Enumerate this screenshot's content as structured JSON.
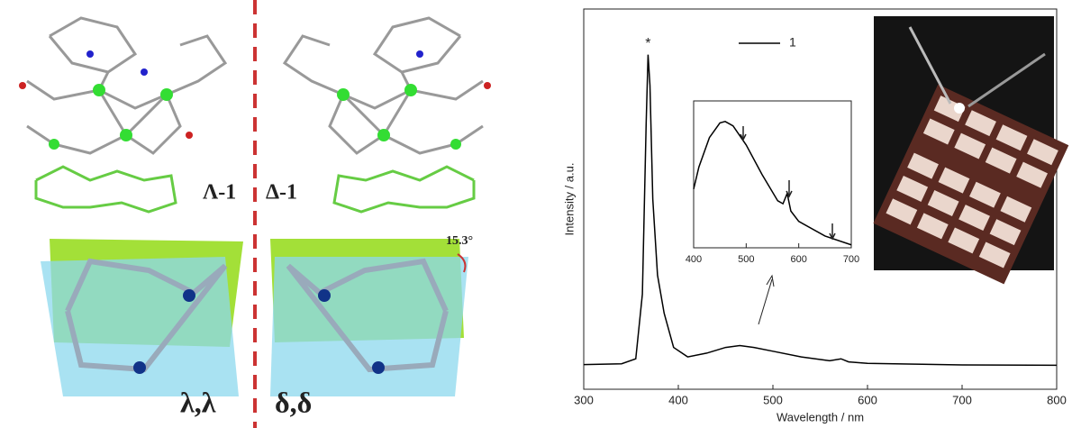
{
  "figure": {
    "labels": [
      "Λ-1",
      "Δ-1",
      "λ,λ",
      "δ,δ"
    ],
    "angle": "15.3°"
  },
  "chart_data": [
    {
      "type": "line",
      "x_label": "Wavelength / nm",
      "y_label": "Intensity / a.u.",
      "annotation": "*",
      "x": [
        300,
        340,
        355,
        362,
        366,
        368,
        370,
        373,
        378,
        385,
        395,
        410,
        430,
        450,
        465,
        480,
        500,
        530,
        560,
        572,
        580,
        600,
        650,
        700,
        800
      ],
      "series": [
        {
          "name": "1",
          "color": "#000000",
          "values": [
            0.065,
            0.067,
            0.08,
            0.25,
            0.7,
            0.88,
            0.8,
            0.5,
            0.3,
            0.2,
            0.11,
            0.085,
            0.095,
            0.11,
            0.115,
            0.11,
            0.1,
            0.085,
            0.075,
            0.08,
            0.072,
            0.068,
            0.066,
            0.064,
            0.063
          ]
        }
      ],
      "xlim": [
        300,
        800
      ],
      "xticks": [
        300,
        400,
        500,
        600,
        700,
        800
      ],
      "ylim": [
        0,
        1
      ]
    },
    {
      "type": "line",
      "x": [
        400,
        410,
        430,
        450,
        460,
        475,
        500,
        530,
        560,
        570,
        578,
        585,
        600,
        650,
        700
      ],
      "series": [
        {
          "color": "#000000",
          "values": [
            0.4,
            0.55,
            0.75,
            0.85,
            0.86,
            0.83,
            0.7,
            0.5,
            0.32,
            0.3,
            0.37,
            0.25,
            0.18,
            0.08,
            0.02
          ]
        }
      ],
      "xlim": [
        400,
        700
      ],
      "xticks": [
        400,
        500,
        600,
        700
      ],
      "ylim": [
        0,
        1
      ]
    }
  ]
}
